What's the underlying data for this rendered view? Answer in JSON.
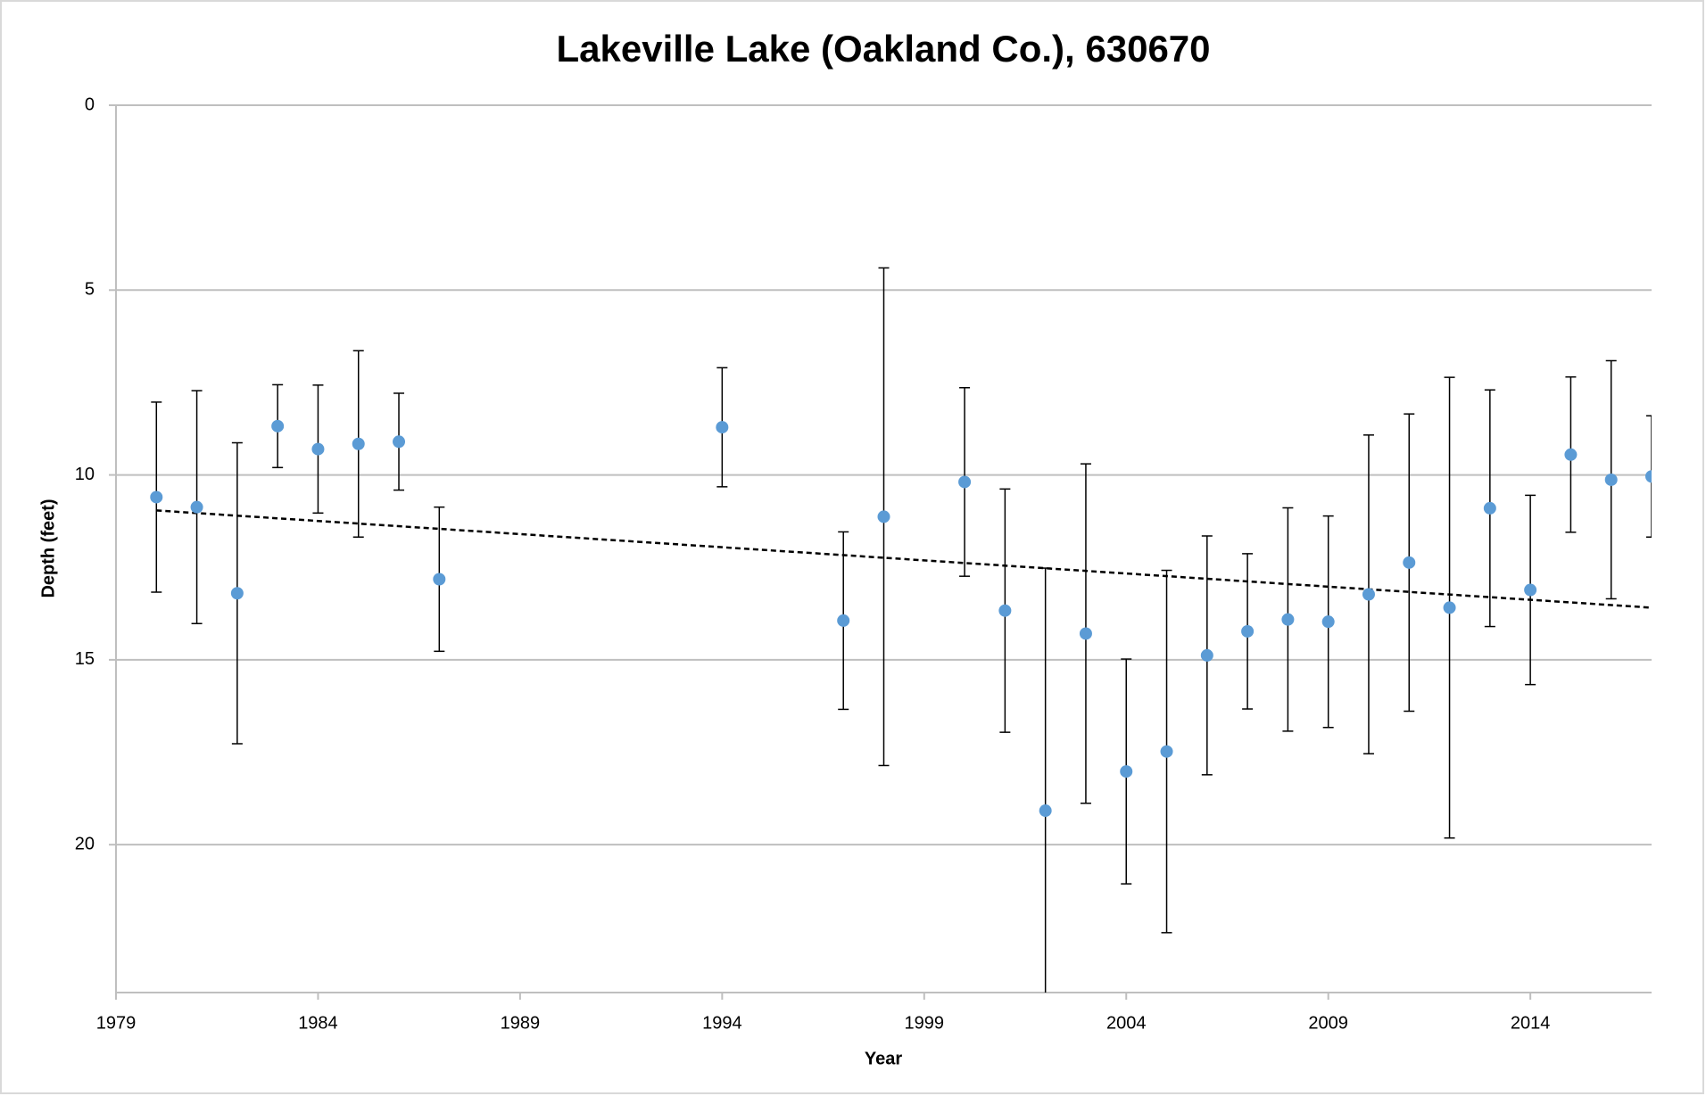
{
  "chart_data": {
    "type": "scatter",
    "title": "Lakeville Lake (Oakland Co.), 630670",
    "x_label": "Year",
    "y_label": "Depth (feet)",
    "x": [
      1980,
      1981,
      1982,
      1983,
      1984,
      1985,
      1986,
      1987,
      1994,
      1997,
      1998,
      2000,
      2001,
      2002,
      2003,
      2004,
      2005,
      2006,
      2007,
      2008,
      2009,
      2010,
      2011,
      2012,
      2013,
      2014,
      2015,
      2016,
      2017
    ],
    "values": [
      10.6,
      10.87,
      13.2,
      8.68,
      9.3,
      9.16,
      9.1,
      12.82,
      8.71,
      13.94,
      11.13,
      10.19,
      13.67,
      19.08,
      14.29,
      18.02,
      17.48,
      14.88,
      14.23,
      13.91,
      13.97,
      13.23,
      12.37,
      13.59,
      10.9,
      13.11,
      9.45,
      10.13,
      10.04
    ],
    "errors": [
      2.57,
      3.15,
      4.07,
      1.12,
      1.73,
      2.52,
      1.31,
      1.95,
      1.61,
      2.4,
      6.73,
      2.55,
      3.29,
      6.56,
      4.59,
      3.04,
      4.9,
      3.23,
      2.1,
      3.02,
      2.86,
      4.31,
      4.02,
      6.23,
      3.2,
      2.56,
      2.1,
      3.22,
      1.64
    ],
    "color": "#5b9bd5",
    "trend": {
      "x": [
        1980,
        2017
      ],
      "values": [
        10.96,
        13.59
      ],
      "color": "#000000"
    },
    "xlim": [
      1979,
      2017
    ],
    "xticks": [
      1979,
      1984,
      1989,
      1994,
      1999,
      2004,
      2009,
      2014
    ],
    "ylim": [
      0,
      24
    ],
    "yticks": [
      0,
      5,
      10,
      15,
      20
    ],
    "y_inverted": true,
    "grid": true
  }
}
